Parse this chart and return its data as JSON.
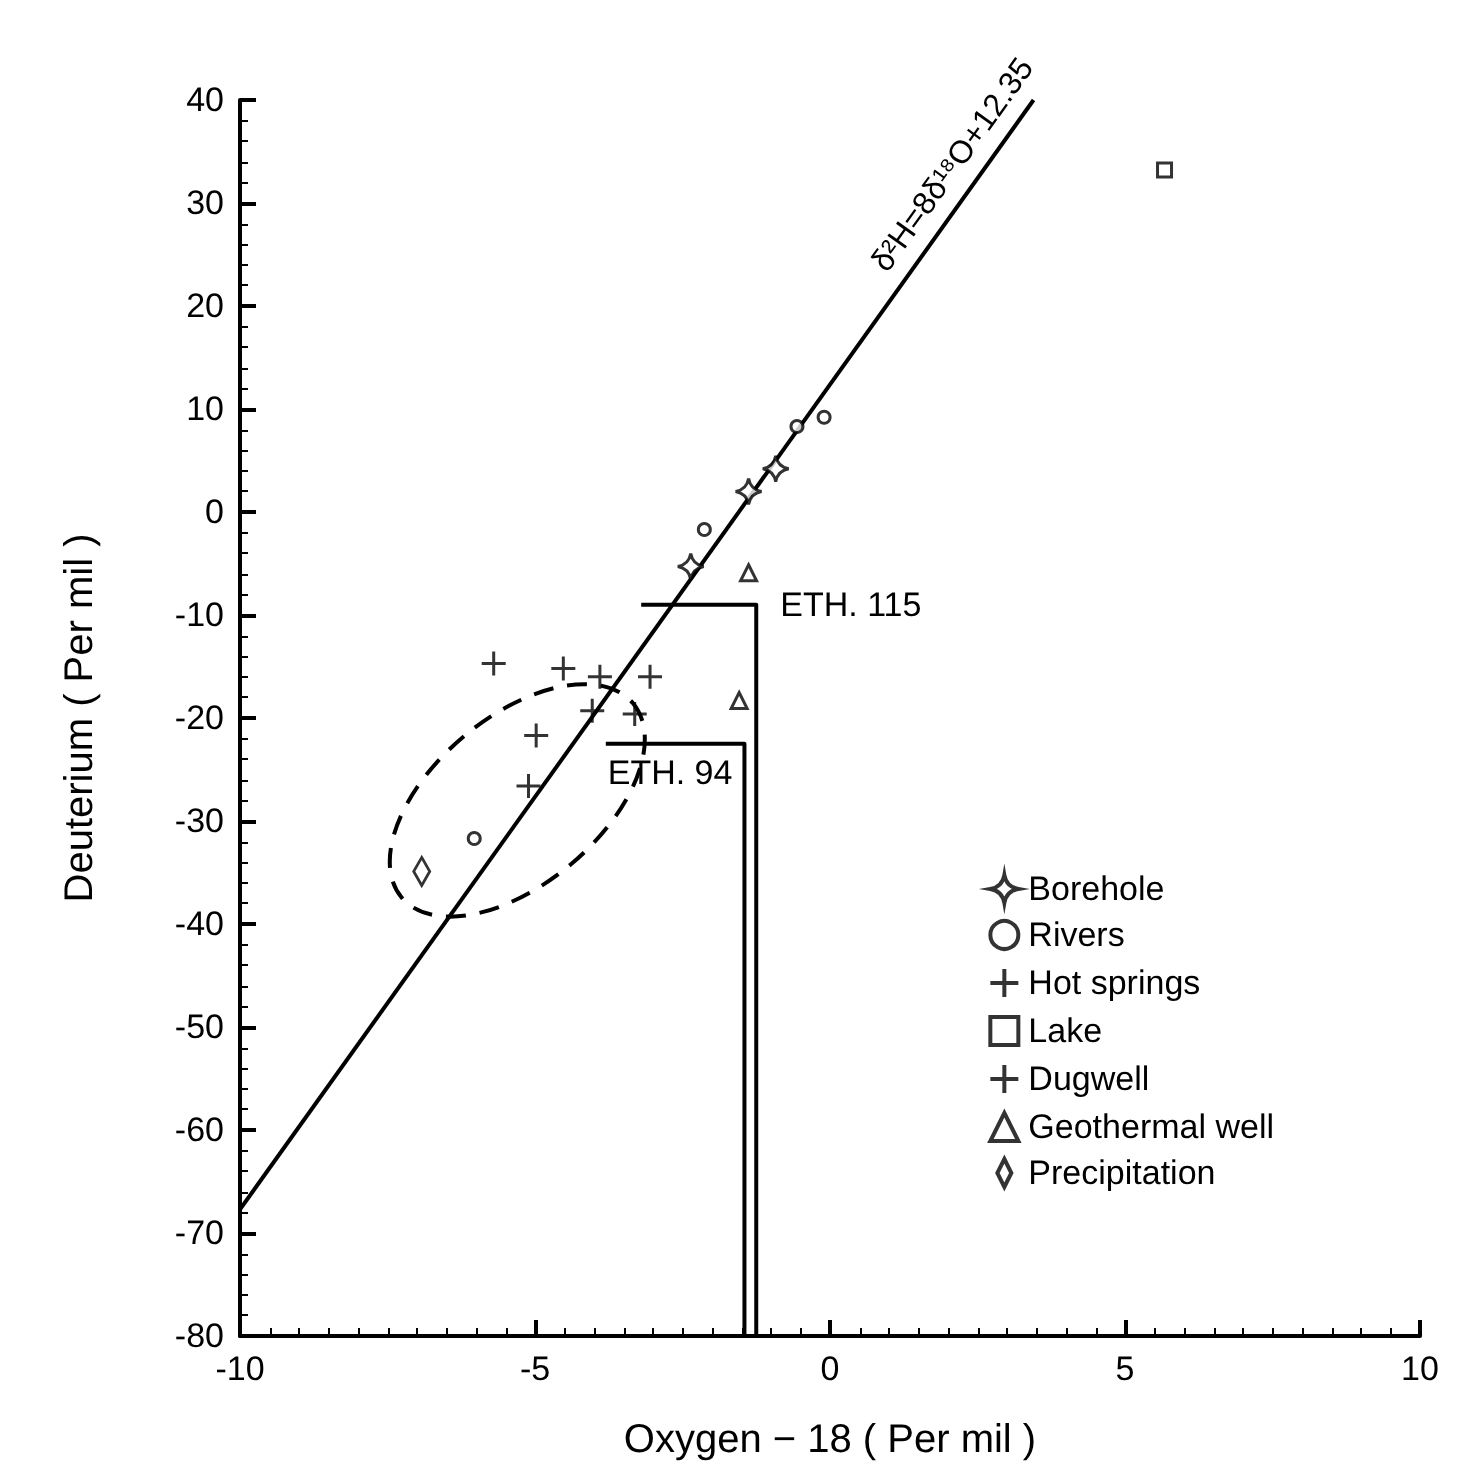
{
  "chart_data": {
    "type": "scatter",
    "xlabel": "Oxygen − 18 ( Per mil )",
    "ylabel": "Deuterium ( Per mil )",
    "xlim": [
      -10,
      10
    ],
    "xticks": [
      -10,
      -5,
      0,
      5,
      10
    ],
    "ylim": [
      -80,
      40
    ],
    "yticks": [
      -80,
      -70,
      -60,
      -50,
      -40,
      -30,
      -20,
      -10,
      0,
      10,
      20,
      30,
      40
    ],
    "grid": false,
    "legend": "bottom right",
    "series": [
      {
        "name": "Borehole",
        "color": "#000000",
        "marker": "star",
        "x": [
          -2.36,
          -1.38,
          -0.92
        ],
        "values": [
          -5.3,
          2,
          4.2
        ]
      },
      {
        "name": "Rivers",
        "color": "#000000",
        "marker": "circle",
        "x": [
          -2.13,
          -0.56,
          -0.1,
          -6.03
        ],
        "values": [
          -1.7,
          8.3,
          9.2,
          -31.7
        ]
      },
      {
        "name": "Hot springs",
        "color": "#000000",
        "marker": "cross",
        "x": [
          -5.7,
          -4.52,
          -3.9,
          -3.05,
          -4.03,
          -3.31,
          -4.98
        ],
        "values": [
          -14.7,
          -15.2,
          -16,
          -16,
          -19.3,
          -19.6,
          -21.7
        ]
      },
      {
        "name": "Lake",
        "color": "#000000",
        "marker": "square",
        "x": [
          5.67
        ],
        "values": [
          33.2
        ]
      },
      {
        "name": "Dugwell",
        "color": "#000000",
        "marker": "cross",
        "x": [
          -5.11
        ],
        "values": [
          -26.6
        ]
      },
      {
        "name": "Geothermal well",
        "color": "#000000",
        "marker": "triangle",
        "x": [
          -1.38,
          -1.54
        ],
        "values": [
          -5.9,
          -18.3
        ]
      },
      {
        "name": "Precipitation",
        "color": "#000000",
        "marker": "diamond",
        "x": [
          -6.92
        ],
        "values": [
          -34.9
        ]
      },
      {
        "type": "line",
        "color": "#000000",
        "marker": "none",
        "x": [
          -10,
          3.45
        ],
        "values": [
          -67.7,
          40
        ]
      },
      {
        "type": "line",
        "name": "ETH. 115",
        "color": "#000000",
        "marker": "none",
        "x": [
          -3.2,
          -1.25,
          -1.25
        ],
        "values": [
          -9,
          -9,
          -80
        ]
      },
      {
        "type": "line",
        "name": "ETH. 94",
        "color": "#000000",
        "marker": "none",
        "x": [
          -3.8,
          -1.45,
          -1.45
        ],
        "values": [
          -22.5,
          -22.5,
          -80
        ]
      }
    ],
    "annotations": [
      {
        "text": "δ²H=8δ¹⁸O+12.35",
        "x": 1.2,
        "y": 21.95
      }
    ]
  }
}
